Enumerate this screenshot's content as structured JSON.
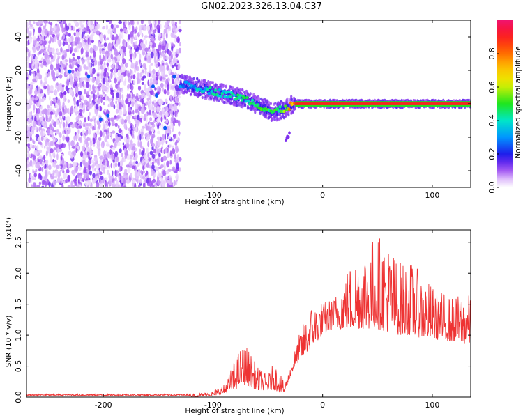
{
  "title": "GN02.2023.326.13.04.C37",
  "chart_data": [
    {
      "type": "heatmap",
      "title": "GN02.2023.326.13.04.C37",
      "xlabel": "Height of straight line (km)",
      "ylabel": "Frequency (Hz)",
      "xlim": [
        -270,
        135
      ],
      "ylim": [
        -50,
        50
      ],
      "xticks": [
        -200,
        -100,
        0,
        100
      ],
      "yticks": [
        -40,
        -20,
        0,
        20,
        40
      ],
      "colorbar": {
        "label": "Normalized spectral amplitude",
        "range": [
          0,
          1
        ],
        "ticks": [
          0.0,
          0.2,
          0.4,
          0.6,
          0.8
        ],
        "colormap": "rainbow (white to violet to blue to cyan to green to yellow to red)"
      },
      "noise_region": {
        "x": [
          -270,
          -130
        ],
        "amplitude_approx": 0.1
      },
      "ridge": {
        "x": [
          -130,
          -110,
          -90,
          -70,
          -55,
          -45,
          -35,
          -25,
          0,
          50,
          90,
          135
        ],
        "frequency": [
          12,
          9,
          6,
          3,
          -2,
          -5,
          -3,
          0,
          0,
          0,
          0,
          0
        ],
        "amplitude_approx": [
          0.3,
          0.4,
          0.45,
          0.45,
          0.5,
          0.5,
          0.6,
          0.95,
          0.95,
          0.95,
          0.95,
          0.95
        ]
      }
    },
    {
      "type": "line",
      "xlabel": "Height of straight line (km)",
      "ylabel": "SNR (10 * v/v)",
      "y_scale_label": "(x10⁴)",
      "xlim": [
        -270,
        135
      ],
      "ylim": [
        0,
        2.7
      ],
      "xticks": [
        -200,
        -100,
        0,
        100
      ],
      "yticks": [
        0.0,
        0.5,
        1.0,
        1.5,
        2.0,
        2.5
      ],
      "series": [
        {
          "color": "#ee3333",
          "x": [
            -270,
            -200,
            -150,
            -120,
            -100,
            -90,
            -80,
            -75,
            -70,
            -65,
            -60,
            -50,
            -45,
            -40,
            -35,
            -30,
            -25,
            -20,
            -15,
            -10,
            0,
            10,
            20,
            30,
            40,
            50,
            60,
            70,
            80,
            90,
            100,
            110,
            120,
            130,
            135
          ],
          "envelope": [
            0.04,
            0.04,
            0.04,
            0.05,
            0.1,
            0.2,
            0.6,
            0.8,
            0.85,
            0.7,
            0.5,
            0.35,
            0.55,
            0.5,
            0.2,
            0.45,
            0.8,
            1.1,
            1.3,
            1.5,
            1.55,
            1.6,
            2.0,
            2.3,
            2.5,
            2.65,
            2.5,
            2.2,
            2.2,
            2.0,
            1.8,
            1.7,
            1.6,
            1.75,
            1.6
          ],
          "baseline": [
            0.0,
            0.0,
            0.0,
            0.0,
            0.02,
            0.05,
            0.1,
            0.2,
            0.2,
            0.15,
            0.1,
            0.1,
            0.12,
            0.08,
            0.06,
            0.3,
            0.5,
            0.6,
            0.7,
            0.8,
            1.0,
            1.1,
            1.1,
            1.1,
            1.1,
            1.1,
            1.05,
            1.0,
            1.0,
            0.95,
            0.95,
            0.9,
            0.9,
            0.85,
            0.85
          ]
        }
      ]
    }
  ]
}
